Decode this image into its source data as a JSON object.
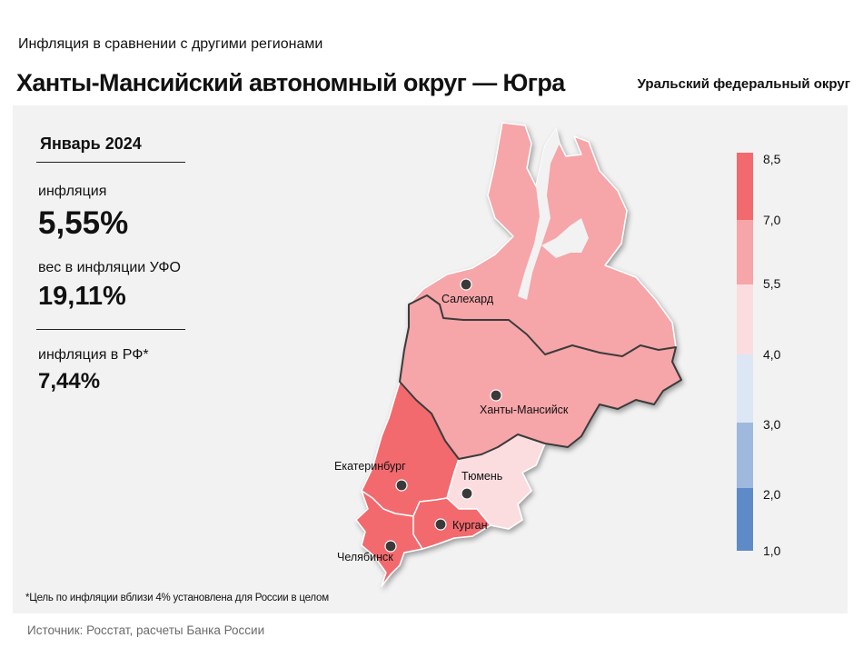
{
  "header": {
    "supertitle": "Инфляция в сравнении с другими регионами",
    "title": "Ханты-Мансийский автономный округ — Югра",
    "district": "Уральский федеральный округ"
  },
  "stats": {
    "period": "Январь 2024",
    "inflation_label": "инфляция",
    "inflation_value": "5,55%",
    "weight_label": "вес в инфляции УФО",
    "weight_value": "19,11%",
    "rf_label": "инфляция в РФ*",
    "rf_value": "7,44%"
  },
  "map": {
    "cities": {
      "salekhard": "Салехард",
      "khanty_mansiysk": "Ханты-Мансийск",
      "yekaterinburg": "Екатеринбург",
      "tyumen": "Тюмень",
      "kurgan": "Курган",
      "chelyabinsk": "Челябинск"
    },
    "region_colors": {
      "yamal": "#f6a5a9",
      "khmao": "#f6a5a9",
      "sverdlovsk": "#f26a6e",
      "tyumen": "#fbdde0",
      "kurgan": "#f26a6e",
      "chelyabinsk": "#f26a6e"
    },
    "legend": {
      "ticks": [
        "8,5",
        "7,0",
        "5,5",
        "4,0",
        "3,0",
        "2,0",
        "1,0"
      ],
      "bin_colors": [
        "#f26a6e",
        "#f6a5a9",
        "#fbdde0",
        "#dce6f5",
        "#9fb8dd",
        "#5f8ac8"
      ]
    }
  },
  "footnote": "*Цель по инфляции вблизи 4% установлена для России в целом",
  "source": "Источник: Росстат, расчеты Банка России"
}
